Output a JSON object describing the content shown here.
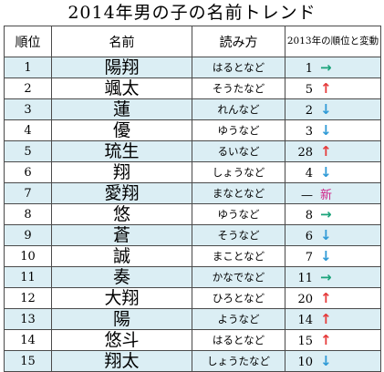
{
  "title": "2014年男の子の名前トレンド",
  "headers": {
    "rank": "順位",
    "name": "名前",
    "reading": "読み方",
    "prev": "2013年の順位と変動"
  },
  "colors": {
    "odd_row": "#dbeef4",
    "up": "#e53a3a",
    "down": "#2f9ad6",
    "same": "#1aa37a",
    "new": "#d0268a"
  },
  "rows": [
    {
      "rank": "1",
      "name": "陽翔",
      "reading": "はるとなど",
      "prev": "1",
      "change": "same",
      "symbol": "→"
    },
    {
      "rank": "2",
      "name": "颯太",
      "reading": "そうたなど",
      "prev": "5",
      "change": "up",
      "symbol": "↑"
    },
    {
      "rank": "3",
      "name": "蓮",
      "reading": "れんなど",
      "prev": "2",
      "change": "down",
      "symbol": "↓"
    },
    {
      "rank": "4",
      "name": "優",
      "reading": "ゆうなど",
      "prev": "3",
      "change": "down",
      "symbol": "↓"
    },
    {
      "rank": "5",
      "name": "琉生",
      "reading": "るいなど",
      "prev": "28",
      "change": "up",
      "symbol": "↑"
    },
    {
      "rank": "6",
      "name": "翔",
      "reading": "しょうなど",
      "prev": "4",
      "change": "down",
      "symbol": "↓"
    },
    {
      "rank": "7",
      "name": "愛翔",
      "reading": "まなとなど",
      "prev": "—",
      "change": "new",
      "symbol": "新"
    },
    {
      "rank": "8",
      "name": "悠",
      "reading": "ゆうなど",
      "prev": "8",
      "change": "same",
      "symbol": "→"
    },
    {
      "rank": "9",
      "name": "蒼",
      "reading": "そうなど",
      "prev": "6",
      "change": "down",
      "symbol": "↓"
    },
    {
      "rank": "10",
      "name": "誠",
      "reading": "まことなど",
      "prev": "7",
      "change": "down",
      "symbol": "↓"
    },
    {
      "rank": "11",
      "name": "奏",
      "reading": "かなでなど",
      "prev": "11",
      "change": "same",
      "symbol": "→"
    },
    {
      "rank": "12",
      "name": "大翔",
      "reading": "ひろとなど",
      "prev": "20",
      "change": "up",
      "symbol": "↑"
    },
    {
      "rank": "13",
      "name": "陽",
      "reading": "ようなど",
      "prev": "14",
      "change": "up",
      "symbol": "↑"
    },
    {
      "rank": "14",
      "name": "悠斗",
      "reading": "はるとなど",
      "prev": "15",
      "change": "up",
      "symbol": "↑"
    },
    {
      "rank": "15",
      "name": "翔太",
      "reading": "しょうたなど",
      "prev": "10",
      "change": "down",
      "symbol": "↓"
    }
  ]
}
